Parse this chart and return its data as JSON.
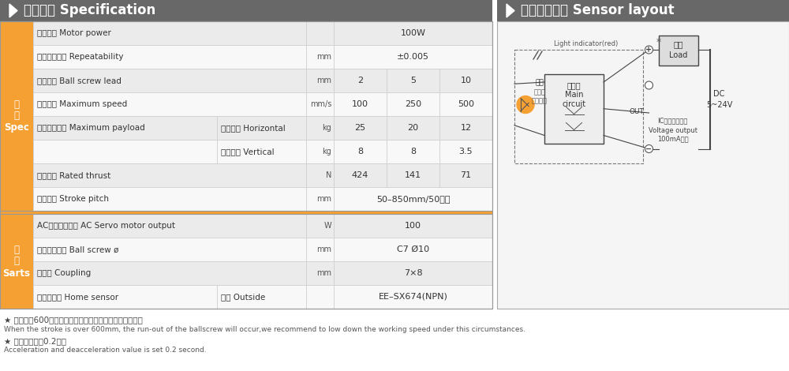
{
  "title_left": "基本仕様 Specification",
  "title_right": "感应器接线图 Sensor layout",
  "header_bg": "#686868",
  "orange_bg": "#F5A033",
  "table_bg_odd": "#EBEBEB",
  "table_bg_even": "#F8F8F8",
  "grid_color": "#CCCCCC",
  "spec_rows": [
    {
      "label1": "馬達功率 Motor power",
      "label2": "",
      "unit": "",
      "vals": [
        "100W"
      ],
      "span": true,
      "double": false
    },
    {
      "label1": "位置重覆精度 Repeatability",
      "label2": "",
      "unit": "mm",
      "vals": [
        "±0.005"
      ],
      "span": true,
      "double": false
    },
    {
      "label1": "螺杆導程 Ball screw lead",
      "label2": "",
      "unit": "mm",
      "vals": [
        "2",
        "5",
        "10"
      ],
      "span": false,
      "double": false
    },
    {
      "label1": "最高速度 Maximum speed",
      "label2": "",
      "unit": "mm/s",
      "vals": [
        "100",
        "250",
        "500"
      ],
      "span": false,
      "double": false
    },
    {
      "label1": "最大可搬重量 Maximum payload",
      "label2": "水平使用 Horizontal",
      "unit": "kg",
      "vals": [
        "25",
        "20",
        "12"
      ],
      "span": false,
      "double": true
    },
    {
      "label1": "",
      "label2": "垂直使用 Vertical",
      "unit": "kg",
      "vals": [
        "8",
        "8",
        "3.5"
      ],
      "span": false,
      "double": true
    },
    {
      "label1": "定格推力 Rated thrust",
      "label2": "",
      "unit": "N",
      "vals": [
        "424",
        "141",
        "71"
      ],
      "span": false,
      "double": false
    },
    {
      "label1": "標準行程 Stroke pitch",
      "label2": "",
      "unit": "mm",
      "vals": [
        "50–850mm/50間隔"
      ],
      "span": true,
      "double": false
    }
  ],
  "parts_rows": [
    {
      "label1": "AC伺服馬達容量 AC Servo motor output",
      "label2": "",
      "unit": "W",
      "vals": [
        "100"
      ],
      "span": true,
      "double": false
    },
    {
      "label1": "滚珠螺杆外徑 Ball screw ø",
      "label2": "",
      "unit": "mm",
      "vals": [
        "C7 Ø10"
      ],
      "span": true,
      "double": false
    },
    {
      "label1": "連軸器 Coupling",
      "label2": "",
      "unit": "mm",
      "vals": [
        "7×8"
      ],
      "span": true,
      "double": false
    },
    {
      "label1": "原點感應器 Home sensor",
      "label2": "外挂 Outside",
      "unit": "",
      "vals": [
        "EE–SX674(NPN)"
      ],
      "span": true,
      "double": true
    }
  ],
  "footnote1_cn": "★ 行程超過600時，會產生螺杆偃擺，此時請將速度調降。",
  "footnote1_en": "When the stroke is over 600mm, the run-out of the ballscrew will occur,we recommend to low down the working speed under this circumstances.",
  "footnote2_cn": "★ 馬達加減設儇0.2秒。",
  "footnote2_en": "Acceleration and deacceleration value is set 0.2 second."
}
